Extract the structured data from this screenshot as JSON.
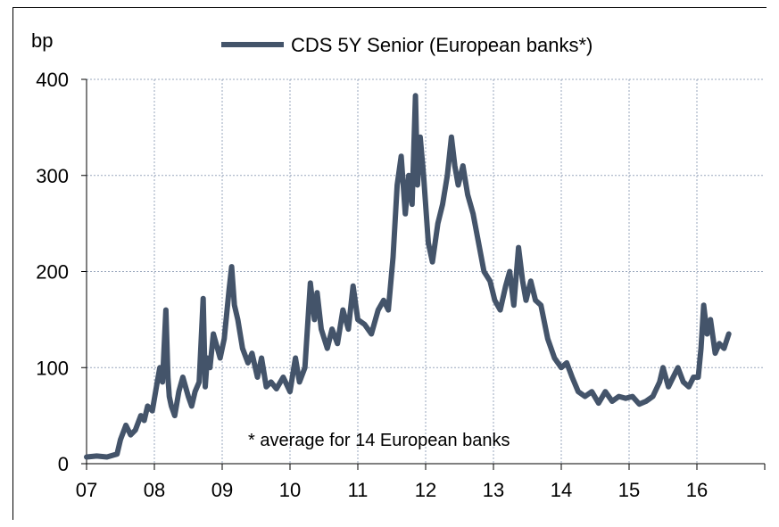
{
  "chart_data": {
    "type": "line",
    "ylabel": "bp",
    "ylim": [
      0,
      400
    ],
    "yticks": [
      0,
      100,
      200,
      300,
      400
    ],
    "xticks": [
      "07",
      "08",
      "09",
      "10",
      "11",
      "12",
      "13",
      "14",
      "15",
      "16"
    ],
    "xlim": [
      2007,
      2017
    ],
    "legend_position": "top-center",
    "annotation": "* average for 14 European banks",
    "grid": true,
    "series": [
      {
        "name": "CDS 5Y Senior (European banks*)",
        "color": "#44546A",
        "x": [
          2007.0,
          2007.15,
          2007.3,
          2007.45,
          2007.5,
          2007.58,
          2007.65,
          2007.72,
          2007.8,
          2007.85,
          2007.9,
          2007.97,
          2008.03,
          2008.08,
          2008.12,
          2008.17,
          2008.2,
          2008.22,
          2008.25,
          2008.3,
          2008.36,
          2008.42,
          2008.5,
          2008.55,
          2008.6,
          2008.66,
          2008.72,
          2008.75,
          2008.78,
          2008.82,
          2008.87,
          2008.93,
          2008.97,
          2009.03,
          2009.1,
          2009.14,
          2009.18,
          2009.23,
          2009.3,
          2009.38,
          2009.44,
          2009.52,
          2009.58,
          2009.65,
          2009.72,
          2009.8,
          2009.9,
          2010.0,
          2010.08,
          2010.14,
          2010.22,
          2010.3,
          2010.36,
          2010.4,
          2010.46,
          2010.55,
          2010.62,
          2010.7,
          2010.78,
          2010.86,
          2010.93,
          2011.0,
          2011.1,
          2011.2,
          2011.3,
          2011.38,
          2011.45,
          2011.52,
          2011.58,
          2011.64,
          2011.7,
          2011.75,
          2011.8,
          2011.85,
          2011.88,
          2011.92,
          2011.97,
          2012.04,
          2012.1,
          2012.18,
          2012.25,
          2012.32,
          2012.38,
          2012.43,
          2012.48,
          2012.55,
          2012.62,
          2012.7,
          2012.78,
          2012.86,
          2012.95,
          2013.02,
          2013.1,
          2013.18,
          2013.24,
          2013.3,
          2013.37,
          2013.43,
          2013.48,
          2013.55,
          2013.62,
          2013.7,
          2013.8,
          2013.9,
          2014.0,
          2014.08,
          2014.16,
          2014.25,
          2014.35,
          2014.45,
          2014.55,
          2014.65,
          2014.75,
          2014.85,
          2014.95,
          2015.05,
          2015.15,
          2015.25,
          2015.35,
          2015.45,
          2015.5,
          2015.58,
          2015.65,
          2015.72,
          2015.8,
          2015.88,
          2015.95,
          2016.02,
          2016.06,
          2016.1,
          2016.15,
          2016.2,
          2016.27,
          2016.33,
          2016.4,
          2016.47
        ],
        "values": [
          7,
          8,
          7,
          10,
          25,
          40,
          30,
          35,
          50,
          45,
          60,
          55,
          80,
          100,
          85,
          160,
          90,
          70,
          60,
          50,
          75,
          90,
          70,
          60,
          75,
          85,
          172,
          80,
          110,
          100,
          135,
          120,
          110,
          130,
          180,
          205,
          165,
          150,
          120,
          105,
          115,
          90,
          110,
          80,
          85,
          78,
          90,
          75,
          110,
          85,
          100,
          188,
          150,
          178,
          140,
          120,
          140,
          125,
          160,
          140,
          185,
          150,
          145,
          135,
          160,
          170,
          160,
          215,
          290,
          320,
          260,
          300,
          270,
          383,
          290,
          340,
          300,
          230,
          210,
          250,
          270,
          300,
          340,
          310,
          290,
          310,
          280,
          260,
          230,
          200,
          190,
          170,
          160,
          185,
          200,
          165,
          225,
          190,
          170,
          190,
          170,
          165,
          130,
          110,
          100,
          105,
          90,
          75,
          70,
          75,
          63,
          75,
          65,
          70,
          68,
          70,
          62,
          65,
          70,
          85,
          100,
          80,
          90,
          100,
          85,
          80,
          90,
          90,
          120,
          165,
          135,
          150,
          115,
          125,
          120,
          135
        ]
      }
    ]
  }
}
